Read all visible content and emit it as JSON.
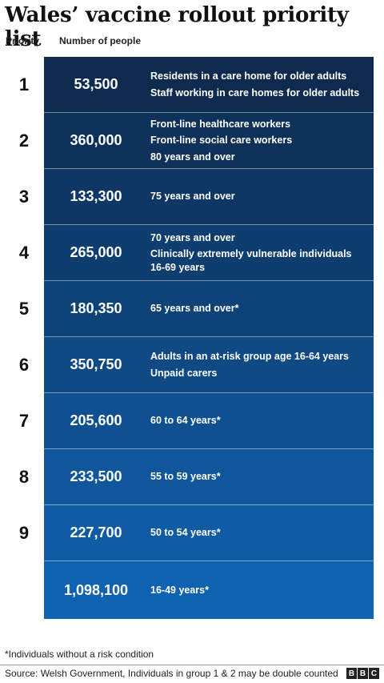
{
  "title": "Wales’ vaccine rollout priority list",
  "headers": {
    "priority": "Priority",
    "people": "Number of people"
  },
  "colors": {
    "top": "#0e2b4f",
    "bottom": "#0f62b0"
  },
  "chart_data": {
    "type": "table",
    "columns": [
      "Priority",
      "Number of people",
      ""
    ],
    "rows": [
      {
        "priority": "1",
        "people": "53,500",
        "groups": [
          "Residents in a care home for older adults",
          "Staff working in care homes for older adults"
        ]
      },
      {
        "priority": "2",
        "people": "360,000",
        "groups": [
          "Front-line healthcare workers",
          "Front-line social care workers",
          "80 years and over"
        ]
      },
      {
        "priority": "3",
        "people": "133,300",
        "groups": [
          "75 years and over"
        ]
      },
      {
        "priority": "4",
        "people": "265,000",
        "groups": [
          "70 years and over",
          "Clinically extremely vulnerable individuals 16-69 years"
        ]
      },
      {
        "priority": "5",
        "people": "180,350",
        "groups": [
          "65 years and over*"
        ]
      },
      {
        "priority": "6",
        "people": "350,750",
        "groups": [
          "Adults in an at-risk group age 16-64 years",
          "Unpaid carers"
        ]
      },
      {
        "priority": "7",
        "people": "205,600",
        "groups": [
          "60 to 64 years*"
        ]
      },
      {
        "priority": "8",
        "people": "233,500",
        "groups": [
          "55 to 59 years*"
        ]
      },
      {
        "priority": "9",
        "people": "227,700",
        "groups": [
          "50 to 54 years*"
        ]
      },
      {
        "priority": "",
        "people": "1,098,100",
        "groups": [
          "16-49 years*"
        ]
      }
    ]
  },
  "footnote": "*Individuals without a risk condition",
  "source": "Source: Welsh Government, Individuals in group 1 & 2 may be double counted",
  "logo": [
    "B",
    "B",
    "C"
  ]
}
